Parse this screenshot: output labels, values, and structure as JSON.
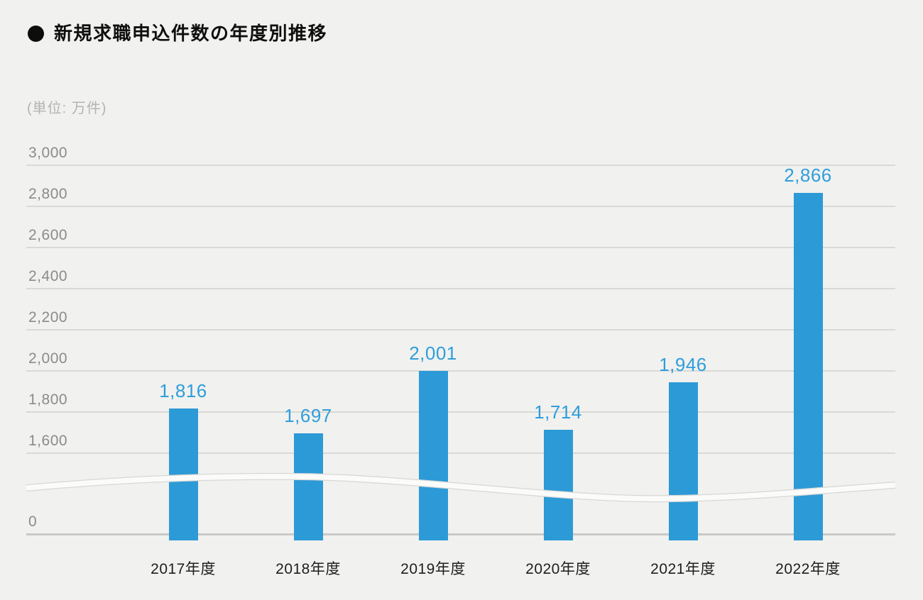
{
  "page": {
    "background_color": "#f1f1ef"
  },
  "chart_data": {
    "type": "bar",
    "title": "新規求職申込件数の年度別推移",
    "unit_label": "(単位: 万件)",
    "categories": [
      "2017年度",
      "2018年度",
      "2019年度",
      "2020年度",
      "2021年度",
      "2022年度"
    ],
    "values": [
      1816,
      1697,
      2001,
      1714,
      1946,
      2866
    ],
    "value_labels": [
      "1,816",
      "1,697",
      "2,001",
      "1,714",
      "1,946",
      "2,866"
    ],
    "xlabel": "",
    "ylabel": "(単位: 万件)",
    "y_axis": {
      "tick_values": [
        3000,
        2800,
        2600,
        2400,
        2200,
        2000,
        1800,
        1600
      ],
      "tick_labels": [
        "3,000",
        "2,800",
        "2,600",
        "2,400",
        "2,200",
        "2,000",
        "1,800",
        "1,600"
      ],
      "zero_label": "0",
      "axis_break": true,
      "visible_range": [
        1600,
        3000
      ]
    },
    "grid": true,
    "legend_position": "none",
    "bar_color": "#2c9ad6",
    "value_label_color": "#2f9edb",
    "gridline_color": "#d9d9d7",
    "tick_label_color": "#8b8b89",
    "category_label_color": "#1e1e1c"
  }
}
